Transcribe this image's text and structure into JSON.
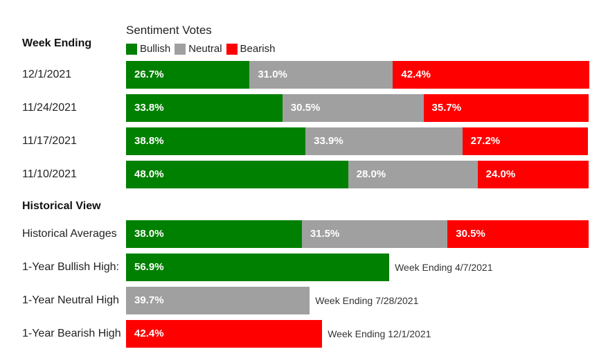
{
  "colors": {
    "bullish": "#008000",
    "neutral": "#a0a0a0",
    "bearish": "#ff0000"
  },
  "chart_data": {
    "type": "bar",
    "stacked": true,
    "orientation": "horizontal",
    "title": "Sentiment Votes",
    "legend": [
      {
        "name": "Bullish",
        "color": "#008000"
      },
      {
        "name": "Neutral",
        "color": "#a0a0a0"
      },
      {
        "name": "Bearish",
        "color": "#ff0000"
      }
    ],
    "weekly_header": "Week Ending",
    "weekly": [
      {
        "label": "12/1/2021",
        "values": [
          26.7,
          31.0,
          42.4
        ],
        "texts": [
          "26.7%",
          "31.0%",
          "42.4%"
        ]
      },
      {
        "label": "11/24/2021",
        "values": [
          33.8,
          30.5,
          35.7
        ],
        "texts": [
          "33.8%",
          "30.5%",
          "35.7%"
        ]
      },
      {
        "label": "11/17/2021",
        "values": [
          38.8,
          33.9,
          27.2
        ],
        "texts": [
          "38.8%",
          "33.9%",
          "27.2%"
        ]
      },
      {
        "label": "11/10/2021",
        "values": [
          48.0,
          28.0,
          24.0
        ],
        "texts": [
          "48.0%",
          "28.0%",
          "24.0%"
        ]
      }
    ],
    "historical_header": "Historical View",
    "historical_averages": {
      "label": "Historical Averages",
      "values": [
        38.0,
        31.5,
        30.5
      ],
      "texts": [
        "38.0%",
        "31.5%",
        "30.5%"
      ]
    },
    "highs": [
      {
        "label": "1-Year Bullish High:",
        "series": 0,
        "value": 56.9,
        "text": "56.9%",
        "note": "Week Ending 4/7/2021"
      },
      {
        "label": "1-Year Neutral High",
        "series": 1,
        "value": 39.7,
        "text": "39.7%",
        "note": "Week Ending 7/28/2021"
      },
      {
        "label": "1-Year Bearish High",
        "series": 2,
        "value": 42.4,
        "text": "42.4%",
        "note": "Week Ending 12/1/2021"
      }
    ]
  }
}
